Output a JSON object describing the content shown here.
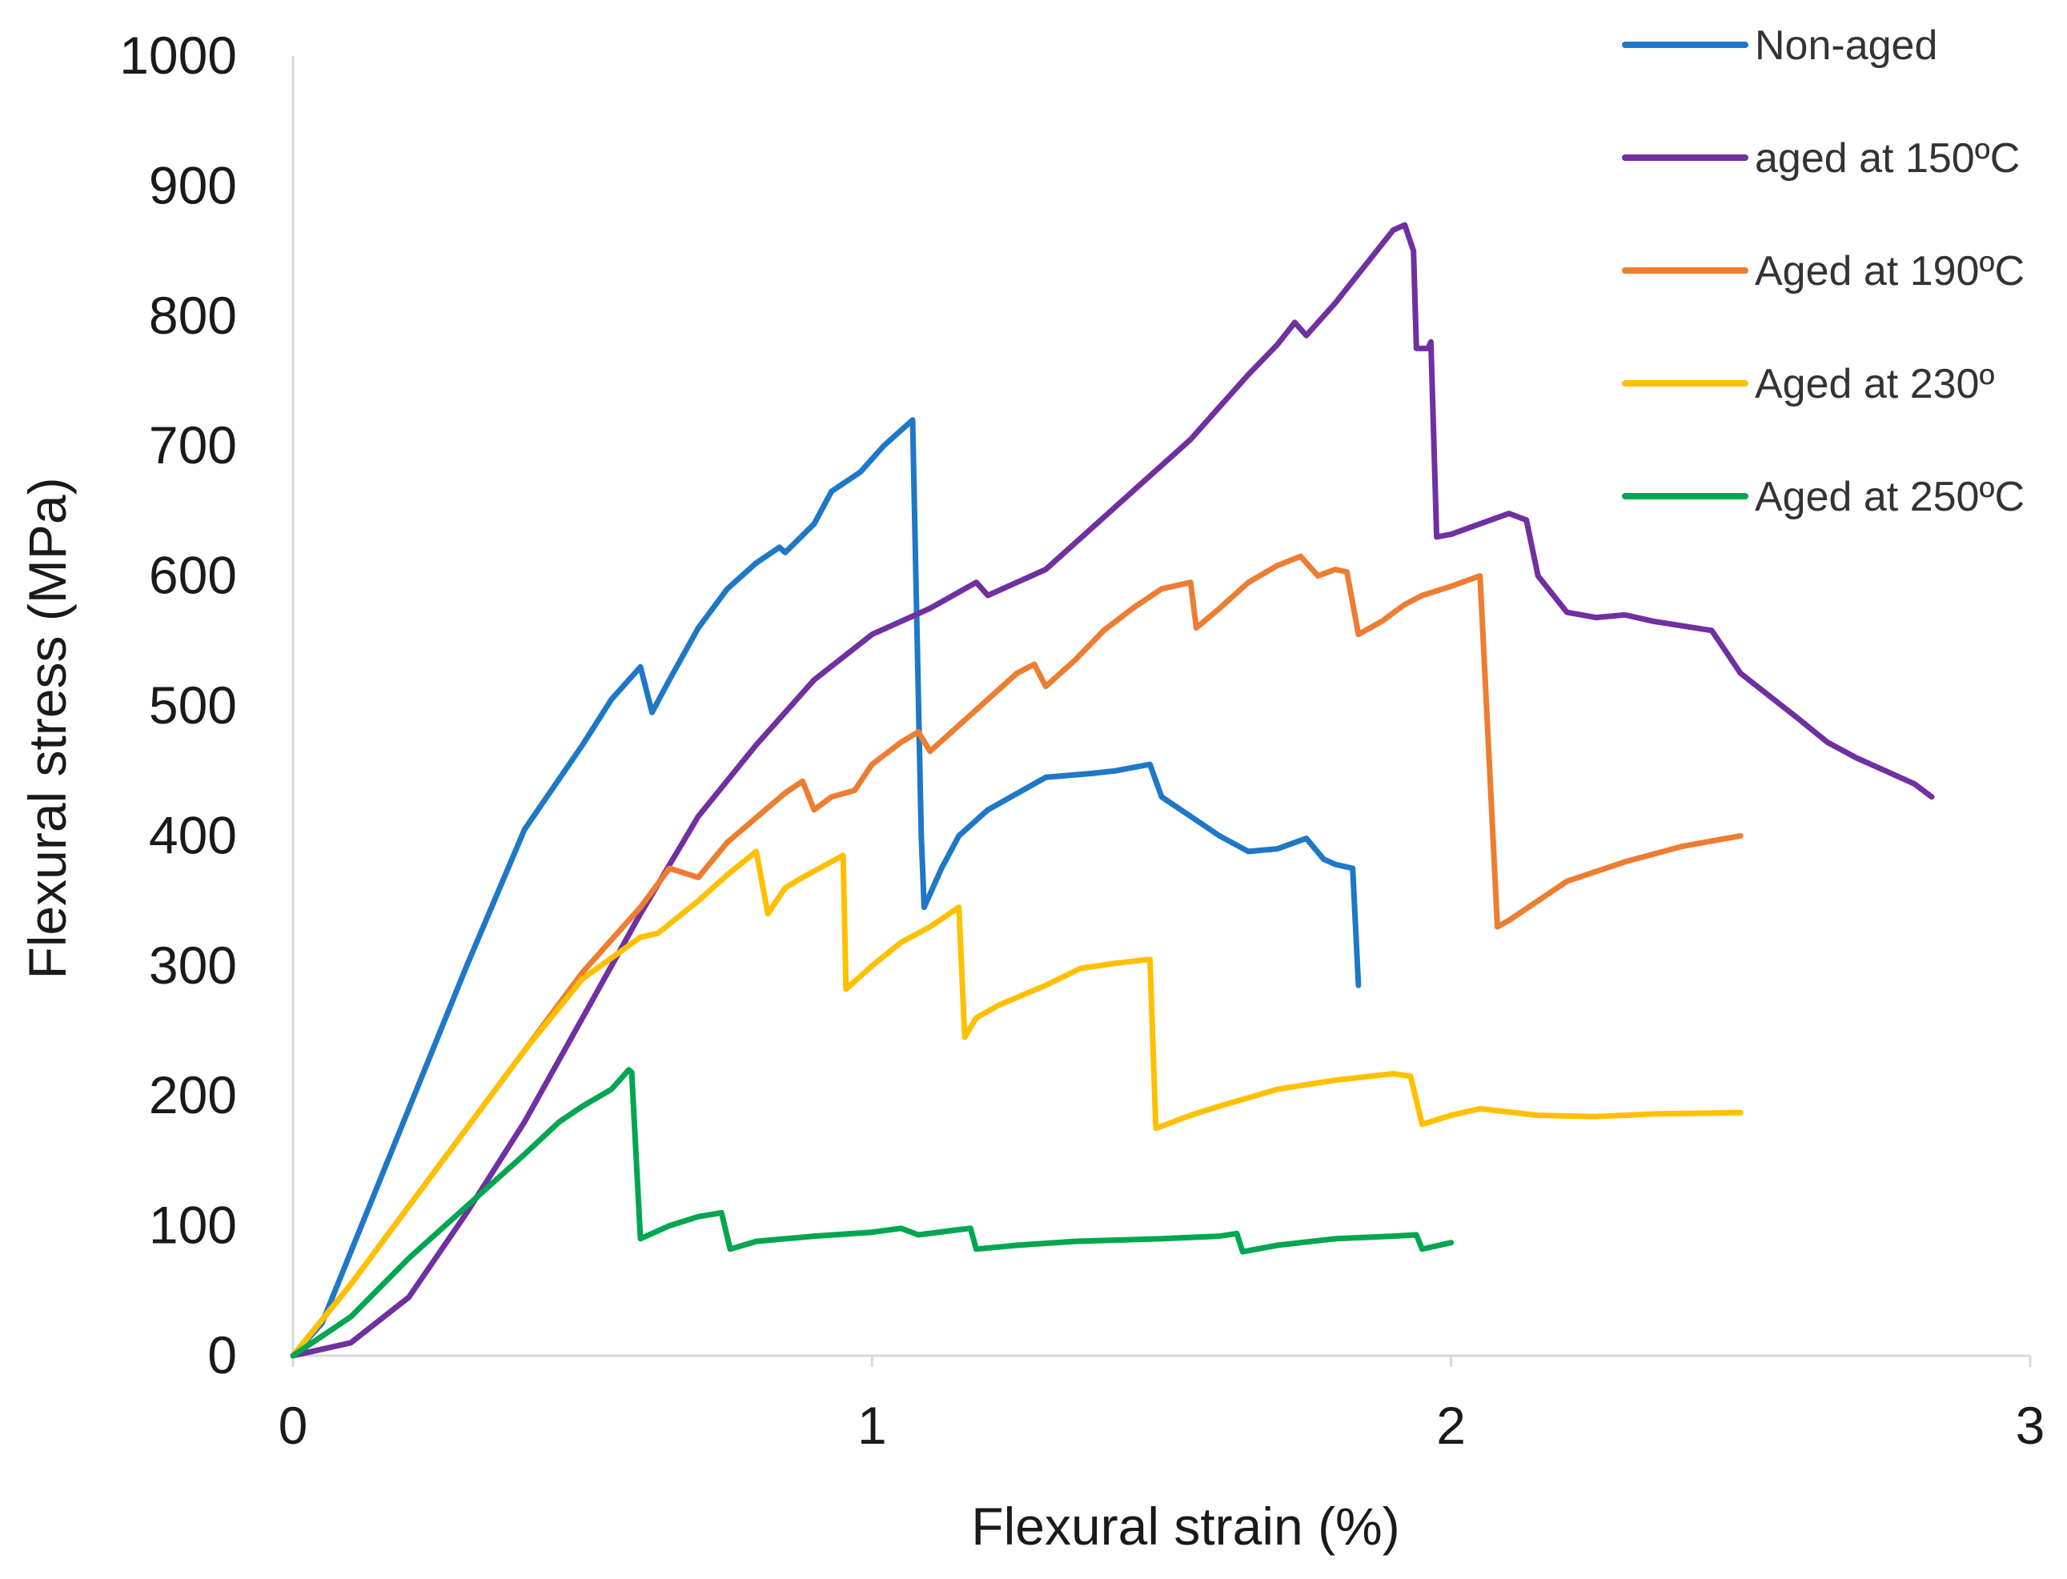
{
  "chart_data": {
    "type": "line",
    "title": "",
    "xlabel": "Flexural strain (%)",
    "ylabel": "Flexural stress (MPa)",
    "xlim": [
      0,
      3
    ],
    "ylim": [
      0,
      1000
    ],
    "x_ticks": [
      0,
      1,
      2,
      3
    ],
    "x_tick_labels": [
      "0",
      "1",
      "2",
      "3"
    ],
    "y_ticks": [
      0,
      100,
      200,
      300,
      400,
      500,
      600,
      700,
      800,
      900,
      1000
    ],
    "y_tick_labels": [
      "0",
      "100",
      "200",
      "300",
      "400",
      "500",
      "600",
      "700",
      "800",
      "900",
      "1000"
    ],
    "grid": false,
    "legend_position": "top-right",
    "series": [
      {
        "name": "Non-aged",
        "color": "#1F77C8",
        "points": [
          [
            0,
            0
          ],
          [
            0.05,
            25
          ],
          [
            0.1,
            80
          ],
          [
            0.2,
            190
          ],
          [
            0.3,
            300
          ],
          [
            0.4,
            405
          ],
          [
            0.5,
            470
          ],
          [
            0.55,
            505
          ],
          [
            0.6,
            530
          ],
          [
            0.62,
            495
          ],
          [
            0.65,
            520
          ],
          [
            0.7,
            560
          ],
          [
            0.75,
            590
          ],
          [
            0.8,
            610
          ],
          [
            0.84,
            622
          ],
          [
            0.85,
            618
          ],
          [
            0.9,
            640
          ],
          [
            0.93,
            665
          ],
          [
            0.98,
            680
          ],
          [
            1.02,
            700
          ],
          [
            1.07,
            720
          ],
          [
            1.085,
            400
          ],
          [
            1.09,
            345
          ],
          [
            1.12,
            375
          ],
          [
            1.15,
            400
          ],
          [
            1.2,
            420
          ],
          [
            1.28,
            440
          ],
          [
            1.3,
            445
          ],
          [
            1.38,
            448
          ],
          [
            1.42,
            450
          ],
          [
            1.48,
            455
          ],
          [
            1.5,
            430
          ],
          [
            1.55,
            415
          ],
          [
            1.6,
            400
          ],
          [
            1.65,
            388
          ],
          [
            1.7,
            390
          ],
          [
            1.75,
            398
          ],
          [
            1.78,
            382
          ],
          [
            1.8,
            378
          ],
          [
            1.83,
            375
          ],
          [
            1.84,
            285
          ]
        ]
      },
      {
        "name": "aged at 150ºC",
        "color": "#7030A0",
        "points": [
          [
            0,
            0
          ],
          [
            0.1,
            10
          ],
          [
            0.2,
            45
          ],
          [
            0.3,
            110
          ],
          [
            0.4,
            180
          ],
          [
            0.5,
            260
          ],
          [
            0.6,
            340
          ],
          [
            0.7,
            415
          ],
          [
            0.8,
            470
          ],
          [
            0.9,
            520
          ],
          [
            1.0,
            555
          ],
          [
            1.1,
            575
          ],
          [
            1.18,
            595
          ],
          [
            1.2,
            585
          ],
          [
            1.25,
            595
          ],
          [
            1.3,
            605
          ],
          [
            1.35,
            625
          ],
          [
            1.4,
            645
          ],
          [
            1.45,
            665
          ],
          [
            1.5,
            685
          ],
          [
            1.55,
            705
          ],
          [
            1.6,
            730
          ],
          [
            1.65,
            755
          ],
          [
            1.7,
            778
          ],
          [
            1.73,
            795
          ],
          [
            1.75,
            785
          ],
          [
            1.8,
            810
          ],
          [
            1.85,
            838
          ],
          [
            1.9,
            866
          ],
          [
            1.92,
            870
          ],
          [
            1.935,
            850
          ],
          [
            1.94,
            775
          ],
          [
            1.96,
            775
          ],
          [
            1.965,
            780
          ],
          [
            1.975,
            630
          ],
          [
            2.0,
            632
          ],
          [
            2.05,
            640
          ],
          [
            2.1,
            648
          ],
          [
            2.13,
            643
          ],
          [
            2.15,
            600
          ],
          [
            2.2,
            572
          ],
          [
            2.25,
            568
          ],
          [
            2.3,
            570
          ],
          [
            2.35,
            565
          ],
          [
            2.45,
            558
          ],
          [
            2.5,
            525
          ],
          [
            2.6,
            490
          ],
          [
            2.65,
            472
          ],
          [
            2.7,
            460
          ],
          [
            2.75,
            450
          ],
          [
            2.8,
            440
          ],
          [
            2.83,
            430
          ]
        ]
      },
      {
        "name": "Aged at 190ºC",
        "color": "#ED7D31",
        "points": [
          [
            0,
            0
          ],
          [
            0.1,
            55
          ],
          [
            0.2,
            115
          ],
          [
            0.3,
            175
          ],
          [
            0.4,
            235
          ],
          [
            0.5,
            295
          ],
          [
            0.6,
            345
          ],
          [
            0.65,
            375
          ],
          [
            0.7,
            368
          ],
          [
            0.75,
            395
          ],
          [
            0.85,
            433
          ],
          [
            0.88,
            442
          ],
          [
            0.9,
            420
          ],
          [
            0.93,
            430
          ],
          [
            0.97,
            435
          ],
          [
            1.0,
            455
          ],
          [
            1.05,
            472
          ],
          [
            1.08,
            480
          ],
          [
            1.1,
            465
          ],
          [
            1.15,
            485
          ],
          [
            1.2,
            505
          ],
          [
            1.25,
            525
          ],
          [
            1.28,
            532
          ],
          [
            1.3,
            515
          ],
          [
            1.35,
            535
          ],
          [
            1.4,
            558
          ],
          [
            1.45,
            575
          ],
          [
            1.5,
            590
          ],
          [
            1.55,
            595
          ],
          [
            1.56,
            560
          ],
          [
            1.6,
            575
          ],
          [
            1.65,
            595
          ],
          [
            1.7,
            608
          ],
          [
            1.74,
            615
          ],
          [
            1.77,
            600
          ],
          [
            1.8,
            605
          ],
          [
            1.82,
            603
          ],
          [
            1.84,
            555
          ],
          [
            1.88,
            565
          ],
          [
            1.92,
            578
          ],
          [
            1.95,
            585
          ],
          [
            2.0,
            592
          ],
          [
            2.05,
            600
          ],
          [
            2.08,
            330
          ],
          [
            2.1,
            335
          ],
          [
            2.2,
            365
          ],
          [
            2.3,
            380
          ],
          [
            2.4,
            392
          ],
          [
            2.5,
            400
          ]
        ]
      },
      {
        "name": "Aged at 230º",
        "color": "#FFC000",
        "points": [
          [
            0,
            0
          ],
          [
            0.1,
            55
          ],
          [
            0.2,
            115
          ],
          [
            0.3,
            175
          ],
          [
            0.4,
            235
          ],
          [
            0.5,
            290
          ],
          [
            0.6,
            322
          ],
          [
            0.63,
            325
          ],
          [
            0.7,
            350
          ],
          [
            0.75,
            370
          ],
          [
            0.8,
            388
          ],
          [
            0.82,
            340
          ],
          [
            0.85,
            360
          ],
          [
            0.88,
            368
          ],
          [
            0.95,
            385
          ],
          [
            0.955,
            282
          ],
          [
            1.0,
            300
          ],
          [
            1.05,
            318
          ],
          [
            1.1,
            330
          ],
          [
            1.15,
            345
          ],
          [
            1.16,
            245
          ],
          [
            1.18,
            260
          ],
          [
            1.22,
            270
          ],
          [
            1.3,
            285
          ],
          [
            1.36,
            298
          ],
          [
            1.42,
            302
          ],
          [
            1.48,
            305
          ],
          [
            1.49,
            175
          ],
          [
            1.55,
            185
          ],
          [
            1.6,
            192
          ],
          [
            1.7,
            205
          ],
          [
            1.8,
            212
          ],
          [
            1.9,
            217
          ],
          [
            1.93,
            215
          ],
          [
            1.95,
            178
          ],
          [
            2.0,
            185
          ],
          [
            2.05,
            190
          ],
          [
            2.15,
            185
          ],
          [
            2.25,
            184
          ],
          [
            2.35,
            186
          ],
          [
            2.5,
            187
          ]
        ]
      },
      {
        "name": "Aged at 250ºC",
        "color": "#00A650",
        "points": [
          [
            0,
            0
          ],
          [
            0.1,
            30
          ],
          [
            0.2,
            75
          ],
          [
            0.3,
            115
          ],
          [
            0.4,
            155
          ],
          [
            0.46,
            180
          ],
          [
            0.5,
            192
          ],
          [
            0.55,
            205
          ],
          [
            0.58,
            220
          ],
          [
            0.585,
            218
          ],
          [
            0.6,
            90
          ],
          [
            0.65,
            100
          ],
          [
            0.7,
            107
          ],
          [
            0.74,
            110
          ],
          [
            0.755,
            82
          ],
          [
            0.8,
            88
          ],
          [
            0.9,
            92
          ],
          [
            1.0,
            95
          ],
          [
            1.05,
            98
          ],
          [
            1.08,
            93
          ],
          [
            1.15,
            97
          ],
          [
            1.17,
            98
          ],
          [
            1.18,
            82
          ],
          [
            1.25,
            85
          ],
          [
            1.35,
            88
          ],
          [
            1.5,
            90
          ],
          [
            1.6,
            92
          ],
          [
            1.63,
            94
          ],
          [
            1.64,
            80
          ],
          [
            1.7,
            85
          ],
          [
            1.8,
            90
          ],
          [
            1.9,
            92
          ],
          [
            1.94,
            93
          ],
          [
            1.95,
            82
          ],
          [
            2.0,
            87
          ]
        ]
      }
    ]
  }
}
